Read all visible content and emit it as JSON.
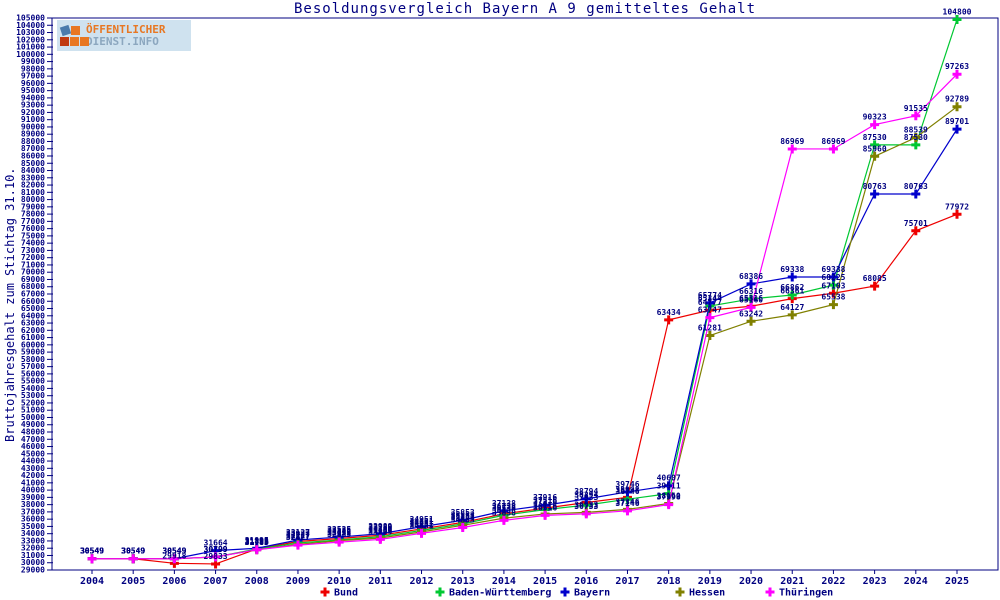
{
  "title": "Besoldungsvergleich Bayern A 9 gemitteltes Gehalt",
  "y_axis_title": "Bruttojahresgehalt zum Stichtag 31.10.",
  "logo": {
    "line1": "ÖFFENTLICHER",
    "line2": "DIENST.INFO",
    "accent_color": "#e87722",
    "secondary_color": "#8ca7bf",
    "background_color": "#cfe2ef"
  },
  "colors": {
    "text": "#000080",
    "frame": "#000080",
    "background": "#ffffff"
  },
  "chart_data": {
    "type": "line",
    "title": "Besoldungsvergleich Bayern A 9 gemitteltes Gehalt",
    "xlabel": "",
    "ylabel": "Bruttojahresgehalt zum Stichtag 31.10.",
    "x": [
      2004,
      2005,
      2006,
      2007,
      2008,
      2009,
      2010,
      2011,
      2012,
      2013,
      2014,
      2015,
      2016,
      2017,
      2018,
      2019,
      2020,
      2021,
      2022,
      2023,
      2024,
      2025
    ],
    "ylim": [
      29000,
      105000
    ],
    "y_tick_step": 1000,
    "grid": false,
    "point_labels": true,
    "legend_position": "bottom",
    "series": [
      {
        "name": "Bund",
        "color": "#ee0000",
        "values": [
          30549,
          30549,
          29918,
          29833,
          31893,
          32927,
          33335,
          33789,
          34651,
          35553,
          36738,
          37516,
          38294,
          38998,
          63434,
          64777,
          65316,
          66361,
          67103,
          68085,
          75701,
          77972
        ]
      },
      {
        "name": "Baden-Württemberg",
        "color": "#00c832",
        "values": [
          30549,
          30549,
          30549,
          30799,
          31885,
          32727,
          33135,
          33589,
          34451,
          35353,
          36538,
          37316,
          37933,
          38746,
          39511,
          65344,
          66316,
          66862,
          68225,
          87530,
          87530,
          104800
        ]
      },
      {
        "name": "Bayern",
        "color": "#0000cc",
        "values": [
          30549,
          30549,
          30549,
          31664,
          31995,
          33127,
          33535,
          33989,
          34951,
          35853,
          37138,
          37916,
          38794,
          39746,
          40607,
          65774,
          68386,
          69338,
          69338,
          80763,
          80763,
          89701
        ]
      },
      {
        "name": "Hessen",
        "color": "#808000",
        "values": [
          30549,
          30549,
          30549,
          30799,
          31785,
          32527,
          33035,
          33409,
          34251,
          35153,
          36138,
          36716,
          36933,
          37346,
          38160,
          61281,
          63242,
          64127,
          65538,
          85960,
          88539,
          92789
        ]
      },
      {
        "name": "Thüringen",
        "color": "#ff00ff",
        "values": [
          30549,
          30549,
          30549,
          30799,
          31785,
          32427,
          32835,
          33209,
          34051,
          34853,
          35838,
          36516,
          36733,
          37146,
          37998,
          63747,
          65160,
          86969,
          86969,
          90323,
          91535,
          97263
        ]
      }
    ]
  }
}
